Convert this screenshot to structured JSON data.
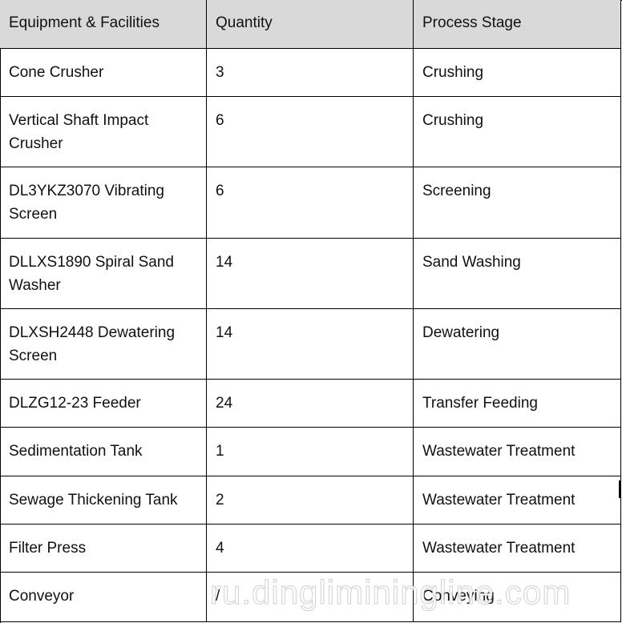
{
  "table": {
    "header": [
      "Equipment & Facilities",
      "Quantity",
      "Process Stage"
    ],
    "rows": [
      [
        "Cone Crusher",
        "3",
        "Crushing"
      ],
      [
        "Vertical Shaft Impact Crusher",
        "6",
        "Crushing"
      ],
      [
        "DL3YKZ3070 Vibrating Screen",
        "6",
        "Screening"
      ],
      [
        "DLLXS1890 Spiral Sand Washer",
        "14",
        "Sand Washing"
      ],
      [
        "DLXSH2448 Dewatering Screen",
        "14",
        "Dewatering"
      ],
      [
        "DLZG12-23 Feeder",
        "24",
        "Transfer Feeding"
      ],
      [
        "Sedimentation Tank",
        "1",
        "Wastewater Treatment"
      ],
      [
        "Sewage Thickening Tank",
        "2",
        "Wastewater Treatment"
      ],
      [
        "Filter Press",
        "4",
        "Wastewater Treatment"
      ],
      [
        "Conveyor",
        "/",
        "Conveying"
      ]
    ]
  },
  "watermark": "ru.dingliminingline.com"
}
